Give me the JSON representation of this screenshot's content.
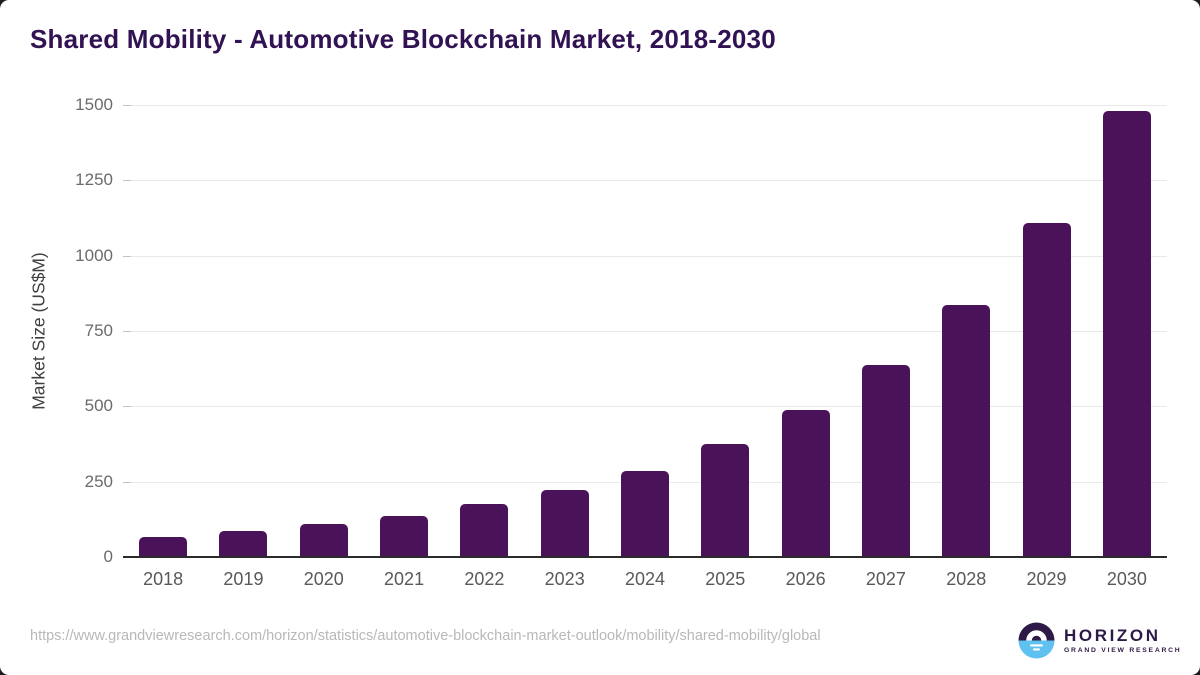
{
  "chart_data": {
    "type": "bar",
    "title": "Shared Mobility - Automotive Blockchain Market, 2018-2030",
    "categories": [
      "2018",
      "2019",
      "2020",
      "2021",
      "2022",
      "2023",
      "2024",
      "2025",
      "2026",
      "2027",
      "2028",
      "2029",
      "2030"
    ],
    "values": [
      68,
      87,
      111,
      137,
      176,
      223,
      286,
      374,
      487,
      636,
      835,
      1109,
      1480
    ],
    "xlabel": "",
    "ylabel": "Market Size (US$M)",
    "ylim": [
      0,
      1500
    ],
    "yticks": [
      0,
      250,
      500,
      750,
      1000,
      1250,
      1500
    ],
    "grid": true,
    "legend": "none",
    "bar_color": "#4a1259"
  },
  "colors": {
    "title": "#311253",
    "bar": "#4a1259",
    "gridline": "#e9e9e9",
    "axis_line": "#2b2b2b",
    "logo_purple": "#2e1a47",
    "logo_blue": "#5ec1ef"
  },
  "footer": {
    "source_url": "https://www.grandviewresearch.com/horizon/statistics/automotive-blockchain-market-outlook/mobility/shared-mobility/global"
  },
  "logo": {
    "brand": "HORIZON",
    "tagline": "GRAND VIEW RESEARCH"
  }
}
